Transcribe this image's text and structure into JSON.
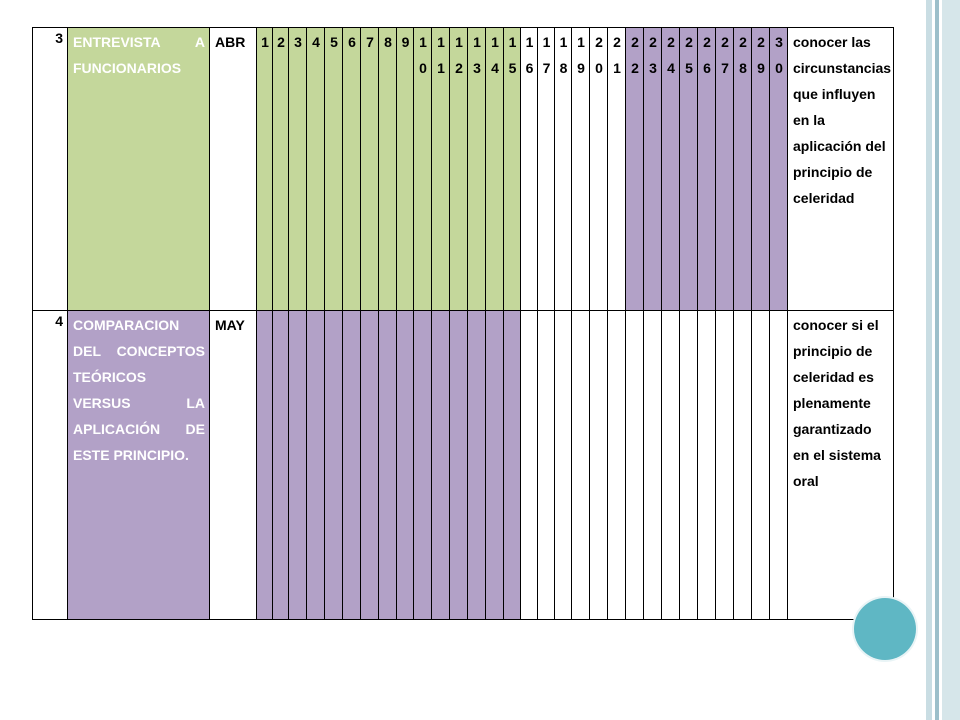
{
  "theme": {
    "green": "#c4d79b",
    "purple": "#b2a1c7",
    "white": "#ffffff",
    "bar_colors": [
      "#c9dde3",
      "#9dbfca",
      "#d6e6ea"
    ]
  },
  "rows": [
    {
      "number": "3",
      "activity": "ENTREVISTA A FUNCIONARIOS",
      "activity_color": "green",
      "month": "ABR",
      "days": [
        "1",
        "2",
        "3",
        "4",
        "5",
        "6",
        "7",
        "8",
        "9",
        "10",
        "11",
        "12",
        "13",
        "14",
        "15",
        "16",
        "17",
        "18",
        "19",
        "20",
        "21",
        "22",
        "23",
        "24",
        "25",
        "26",
        "27",
        "28",
        "29",
        "30"
      ],
      "day_colors": [
        "green",
        "green",
        "green",
        "green",
        "green",
        "green",
        "green",
        "green",
        "green",
        "green",
        "green",
        "green",
        "green",
        "green",
        "green",
        "white",
        "white",
        "white",
        "white",
        "white",
        "white",
        "purple",
        "purple",
        "purple",
        "purple",
        "purple",
        "purple",
        "purple",
        "purple",
        "purple"
      ],
      "objective": "conocer las circunstancias que influyen en la aplicación del principio de celeridad"
    },
    {
      "number": "4",
      "activity": "COMPARACION DEL CONCEPTOS TEÓRICOS VERSUS LA APLICACIÓN DE ESTE PRINCIPIO.",
      "activity_color": "purple",
      "month": "MAY",
      "days": [
        "",
        "",
        "",
        "",
        "",
        "",
        "",
        "",
        "",
        "",
        "",
        "",
        "",
        "",
        "",
        "",
        "",
        "",
        "",
        "",
        "",
        "",
        "",
        "",
        "",
        "",
        "",
        "",
        "",
        ""
      ],
      "day_colors": [
        "purple",
        "purple",
        "purple",
        "purple",
        "purple",
        "purple",
        "purple",
        "purple",
        "purple",
        "purple",
        "purple",
        "purple",
        "purple",
        "purple",
        "purple",
        "white",
        "white",
        "white",
        "white",
        "white",
        "white",
        "white",
        "white",
        "white",
        "white",
        "white",
        "white",
        "white",
        "white",
        "white"
      ],
      "objective": "conocer si el principio de celeridad es plenamente garantizado en el sistema oral"
    }
  ]
}
